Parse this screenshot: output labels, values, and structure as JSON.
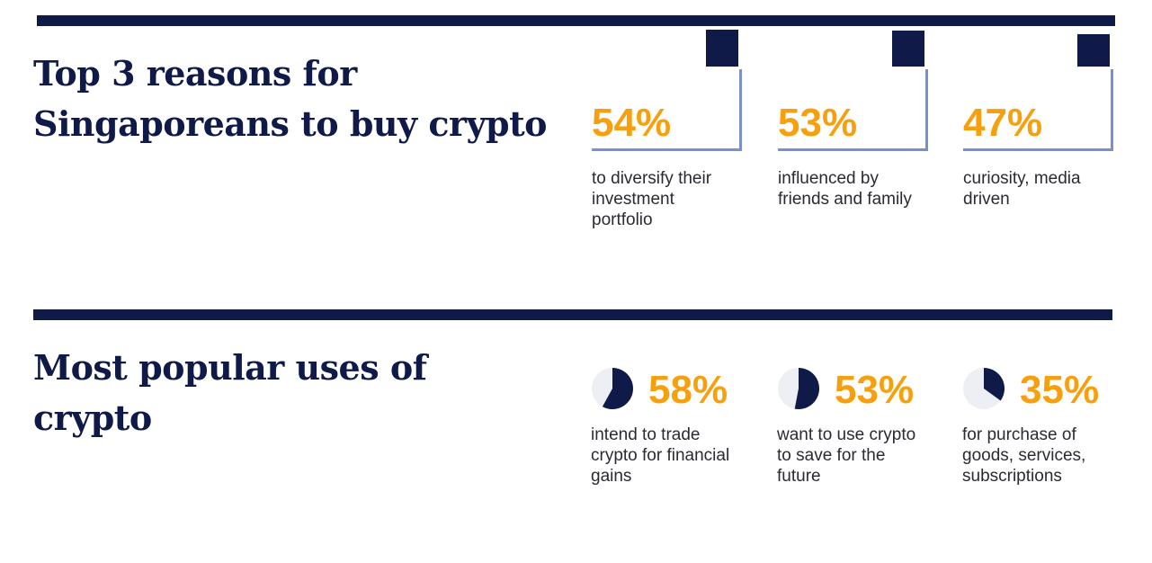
{
  "section_reasons": {
    "title_line1": "Top 3 reasons for",
    "title_line2": "Singaporeans to buy crypto"
  },
  "section_uses": {
    "title_line1": "Most popular uses of",
    "title_line2": "crypto"
  },
  "colors": {
    "navy": "#0f1a48",
    "accent": "#f6a00e",
    "frame": "#7a8fcf",
    "pie_rest": "#eeeff4"
  },
  "chart_data": [
    {
      "type": "bar",
      "categories": [
        "to diversify their investment portfolio",
        "influenced by friends and family",
        "curiosity, media driven"
      ],
      "values": [
        54,
        53,
        47
      ],
      "labels": [
        "54%",
        "53%",
        "47%"
      ],
      "ylim": [
        0,
        100
      ]
    },
    {
      "type": "pie",
      "categories": [
        "intend to trade crypto for financial gains",
        "want to use crypto to save for the future",
        " for purchase of goods, services, subscriptions"
      ],
      "values": [
        58,
        53,
        35
      ],
      "labels": [
        "58%",
        "53%",
        "35%"
      ]
    }
  ],
  "reasons_desc": [
    [
      "to diversify their",
      "investment",
      "portfolio"
    ],
    [
      "influenced by",
      "friends and family"
    ],
    [
      "curiosity, media",
      "driven"
    ]
  ],
  "uses_desc": [
    [
      "intend to trade",
      "crypto for financial",
      "gains"
    ],
    [
      "want to use crypto",
      "to save for the",
      "future"
    ],
    [
      " for purchase of",
      "goods, services,",
      "subscriptions"
    ]
  ]
}
